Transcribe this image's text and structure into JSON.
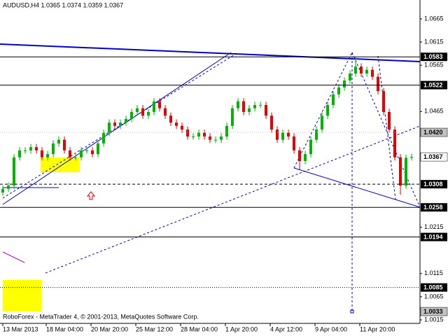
{
  "chart_data": {
    "type": "candlestick",
    "title": "AUDUSD,H4  1.0365 1.0374 1.0359 1.0367",
    "footer": "RoboForex - MetaTrader 4, © 2001-2013, MetaQuotes Software Corp.",
    "up_color": "#00b400",
    "down_color": "#e00000",
    "open": [
      1.029,
      1.0298,
      1.0305,
      1.0366,
      1.0381,
      1.0381,
      1.0388,
      1.0381,
      1.0366,
      1.0373,
      1.0396,
      1.0404,
      1.0381,
      1.0366,
      1.0366,
      1.0381,
      1.0381,
      1.0373,
      1.0396,
      1.0419,
      1.0441,
      1.0434,
      1.0441,
      1.0449,
      1.0464,
      1.0472,
      1.0456,
      1.0464,
      1.0487,
      1.0472,
      1.0456,
      1.0441,
      1.0434,
      1.0426,
      1.0411,
      1.0411,
      1.0419,
      1.0411,
      1.0404,
      1.0404,
      1.0411,
      1.0434,
      1.0472,
      1.0487,
      1.0464,
      1.0472,
      1.0479,
      1.0479,
      1.0456,
      1.0426,
      1.0404,
      1.0419,
      1.0411,
      1.0381,
      1.0358,
      1.0373,
      1.0404,
      1.0426,
      1.0456,
      1.0479,
      1.0502,
      1.0517,
      1.0532,
      1.0547,
      1.0562,
      1.0547,
      1.0555,
      1.054,
      1.0509,
      1.0464,
      1.0426,
      1.0366,
      1.0305,
      1.0365
    ],
    "high": [
      1.0305,
      1.0312,
      1.0373,
      1.0388,
      1.0388,
      1.0395,
      1.0395,
      1.0388,
      1.038,
      1.0403,
      1.0411,
      1.0411,
      1.0388,
      1.0373,
      1.0388,
      1.0388,
      1.0388,
      1.0403,
      1.0426,
      1.0448,
      1.0448,
      1.0448,
      1.0456,
      1.0471,
      1.0479,
      1.0479,
      1.0471,
      1.0494,
      1.0494,
      1.0479,
      1.0463,
      1.0448,
      1.0441,
      1.0433,
      1.0418,
      1.0426,
      1.0426,
      1.0418,
      1.0411,
      1.0418,
      1.0441,
      1.0479,
      1.0494,
      1.0494,
      1.0479,
      1.0486,
      1.0486,
      1.0486,
      1.0463,
      1.0433,
      1.0426,
      1.0426,
      1.0418,
      1.0388,
      1.038,
      1.0411,
      1.0433,
      1.0463,
      1.0486,
      1.0509,
      1.0524,
      1.0539,
      1.0554,
      1.0583,
      1.0569,
      1.0562,
      1.0562,
      1.0547,
      1.0516,
      1.0471,
      1.0433,
      1.0373,
      1.0372,
      1.0374
    ],
    "low": [
      1.0283,
      1.0291,
      1.0298,
      1.0359,
      1.0374,
      1.0374,
      1.0374,
      1.0359,
      1.0359,
      1.0366,
      1.0389,
      1.0374,
      1.0359,
      1.0359,
      1.0359,
      1.0374,
      1.0366,
      1.0366,
      1.0389,
      1.0412,
      1.0427,
      1.0427,
      1.0434,
      1.0442,
      1.0457,
      1.0449,
      1.0449,
      1.0457,
      1.0465,
      1.0449,
      1.0434,
      1.0427,
      1.0419,
      1.0404,
      1.0404,
      1.0404,
      1.0404,
      1.0397,
      1.0397,
      1.0397,
      1.0404,
      1.0427,
      1.0465,
      1.0457,
      1.0457,
      1.0465,
      1.0472,
      1.0449,
      1.0419,
      1.0397,
      1.0397,
      1.0404,
      1.0374,
      1.034,
      1.0351,
      1.0366,
      1.0397,
      1.0419,
      1.0449,
      1.0472,
      1.0495,
      1.051,
      1.0525,
      1.054,
      1.054,
      1.054,
      1.0533,
      1.0502,
      1.0457,
      1.0419,
      1.0359,
      1.0285,
      1.0298,
      1.0359
    ],
    "close": [
      1.0298,
      1.0305,
      1.0366,
      1.0381,
      1.0381,
      1.0388,
      1.0381,
      1.0366,
      1.0373,
      1.0396,
      1.0404,
      1.0381,
      1.0366,
      1.0366,
      1.0381,
      1.0381,
      1.0373,
      1.0396,
      1.0419,
      1.0441,
      1.0434,
      1.0441,
      1.0449,
      1.0464,
      1.0472,
      1.0456,
      1.0464,
      1.0487,
      1.0472,
      1.0456,
      1.0441,
      1.0434,
      1.0426,
      1.0411,
      1.0411,
      1.0419,
      1.0411,
      1.0404,
      1.0404,
      1.0411,
      1.0434,
      1.0472,
      1.0487,
      1.0464,
      1.0472,
      1.0479,
      1.0479,
      1.0456,
      1.0426,
      1.0404,
      1.0419,
      1.0411,
      1.0381,
      1.0358,
      1.0373,
      1.0404,
      1.0426,
      1.0456,
      1.0479,
      1.0502,
      1.0517,
      1.0532,
      1.0547,
      1.0562,
      1.0547,
      1.0555,
      1.054,
      1.0509,
      1.0464,
      1.0426,
      1.0366,
      1.0305,
      1.0365,
      1.0367
    ],
    "xlim": [
      -0.5,
      74.5
    ],
    "xticks": [
      {
        "value": 0,
        "label": "13 Mar 2013"
      },
      {
        "value": 7.75,
        "label": "18 Mar 04:00"
      },
      {
        "value": 15.75,
        "label": "20 Mar 20:00"
      },
      {
        "value": 23.75,
        "label": "25 Mar 12:00"
      },
      {
        "value": 31.75,
        "label": "28 Mar 04:00"
      },
      {
        "value": 39.75,
        "label": "1 Apr 20:00"
      },
      {
        "value": 47.75,
        "label": "4 Apr 12:00"
      },
      {
        "value": 55.75,
        "label": "9 Apr 04:00"
      },
      {
        "value": 63.75,
        "label": "11 Apr 20:00"
      }
    ],
    "ylim": [
      1.00074,
      1.07058
    ],
    "yticks": [
      1.0665,
      1.0615,
      1.0565,
      1.0465,
      1.0215,
      1.0115,
      1.0065,
      1.0015
    ],
    "levels": [
      {
        "value": 1.0583,
        "label": "1.0583",
        "style": "solid",
        "color": "#000000"
      },
      {
        "value": 1.0522,
        "label": "1.0522",
        "style": "solid",
        "color": "#000000"
      },
      {
        "value": 1.042,
        "label": "1.0420",
        "style": "dotted",
        "color": "#c0c0c0"
      },
      {
        "value": 1.0367,
        "label": "1.0367",
        "style": "none",
        "color": "#ffffff"
      },
      {
        "value": 1.0308,
        "label": "1.0308",
        "style": "dashed",
        "color": "#000000"
      },
      {
        "value": 1.0258,
        "label": "1.0258",
        "style": "solid",
        "color": "#000000"
      },
      {
        "value": 1.0194,
        "label": "1.0194",
        "style": "solid",
        "color": "#000000"
      },
      {
        "value": 1.0085,
        "label": "1.0085",
        "style": "dotted",
        "color": "#000000"
      },
      {
        "value": 1.0033,
        "label": "1.0033",
        "style": "none",
        "color": "#c0c0c0"
      }
    ]
  }
}
